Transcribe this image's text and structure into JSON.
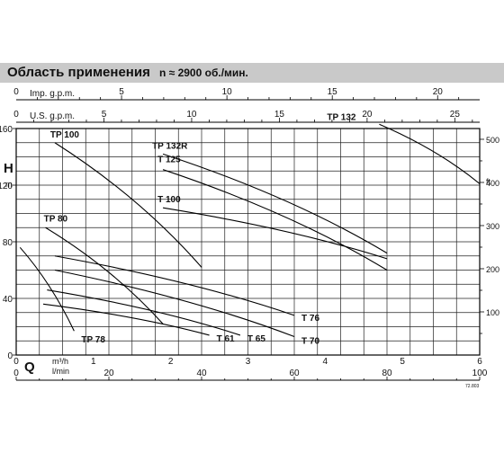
{
  "header": {
    "title": "Область применения",
    "speed": "n ≈ 2900 об./мин."
  },
  "chart_data": {
    "type": "line",
    "title": "Область применения",
    "subtitle": "n ≈ 2900 об./мин.",
    "ylabel": "H",
    "yunit": "m",
    "yunit2": "ft",
    "xlabel": "Q",
    "xunit_m3h": "m³/h",
    "xunit_lmin": "l/min",
    "grid": true,
    "xlim": [
      0,
      6
    ],
    "ylim": [
      0,
      160
    ],
    "x_ticks_m3h": [
      "0",
      "1",
      "2",
      "3",
      "4",
      "5",
      "6"
    ],
    "x_ticks_lmin": [
      "0",
      "20",
      "40",
      "60",
      "80",
      "100"
    ],
    "x_ticks_imp_gpm": [
      "0",
      "5",
      "10",
      "15",
      "20"
    ],
    "x_ticks_us_gpm": [
      "0",
      "5",
      "10",
      "15",
      "20",
      "25"
    ],
    "imp_label": "Imp. g.p.m.",
    "us_label": "U.S. g.p.m.",
    "y_ticks_m": [
      "0",
      "40",
      "80",
      "120",
      "160"
    ],
    "y_ticks_ft": [
      "100",
      "200",
      "300",
      "400",
      "500"
    ],
    "code": "72.803",
    "series": [
      {
        "name": "TP 100",
        "x": [
          0.5,
          2.4
        ],
        "y": [
          150,
          62
        ]
      },
      {
        "name": "TP 132R",
        "x": [
          1.9,
          4.8
        ],
        "y": [
          142,
          72
        ]
      },
      {
        "name": "T 125",
        "x": [
          1.9,
          4.8
        ],
        "y": [
          131,
          60
        ]
      },
      {
        "name": "T 100",
        "x": [
          1.9,
          4.8
        ],
        "y": [
          104,
          68
        ]
      },
      {
        "name": "TP 132",
        "x": [
          4.7,
          6.0
        ],
        "y": [
          163,
          121
        ]
      },
      {
        "name": "TP 80",
        "x": [
          0.38,
          1.9
        ],
        "y": [
          90,
          22
        ]
      },
      {
        "name": "T 76",
        "x": [
          0.5,
          3.6
        ],
        "y": [
          70,
          28
        ]
      },
      {
        "name": "T 70",
        "x": [
          0.5,
          3.6
        ],
        "y": [
          60,
          13
        ]
      },
      {
        "name": "T 65",
        "x": [
          0.4,
          2.9
        ],
        "y": [
          46,
          14
        ]
      },
      {
        "name": "T 61",
        "x": [
          0.35,
          2.5
        ],
        "y": [
          36,
          14
        ]
      },
      {
        "name": "TP 78",
        "x": [
          0.05,
          0.75
        ],
        "y": [
          76,
          17
        ]
      }
    ]
  }
}
